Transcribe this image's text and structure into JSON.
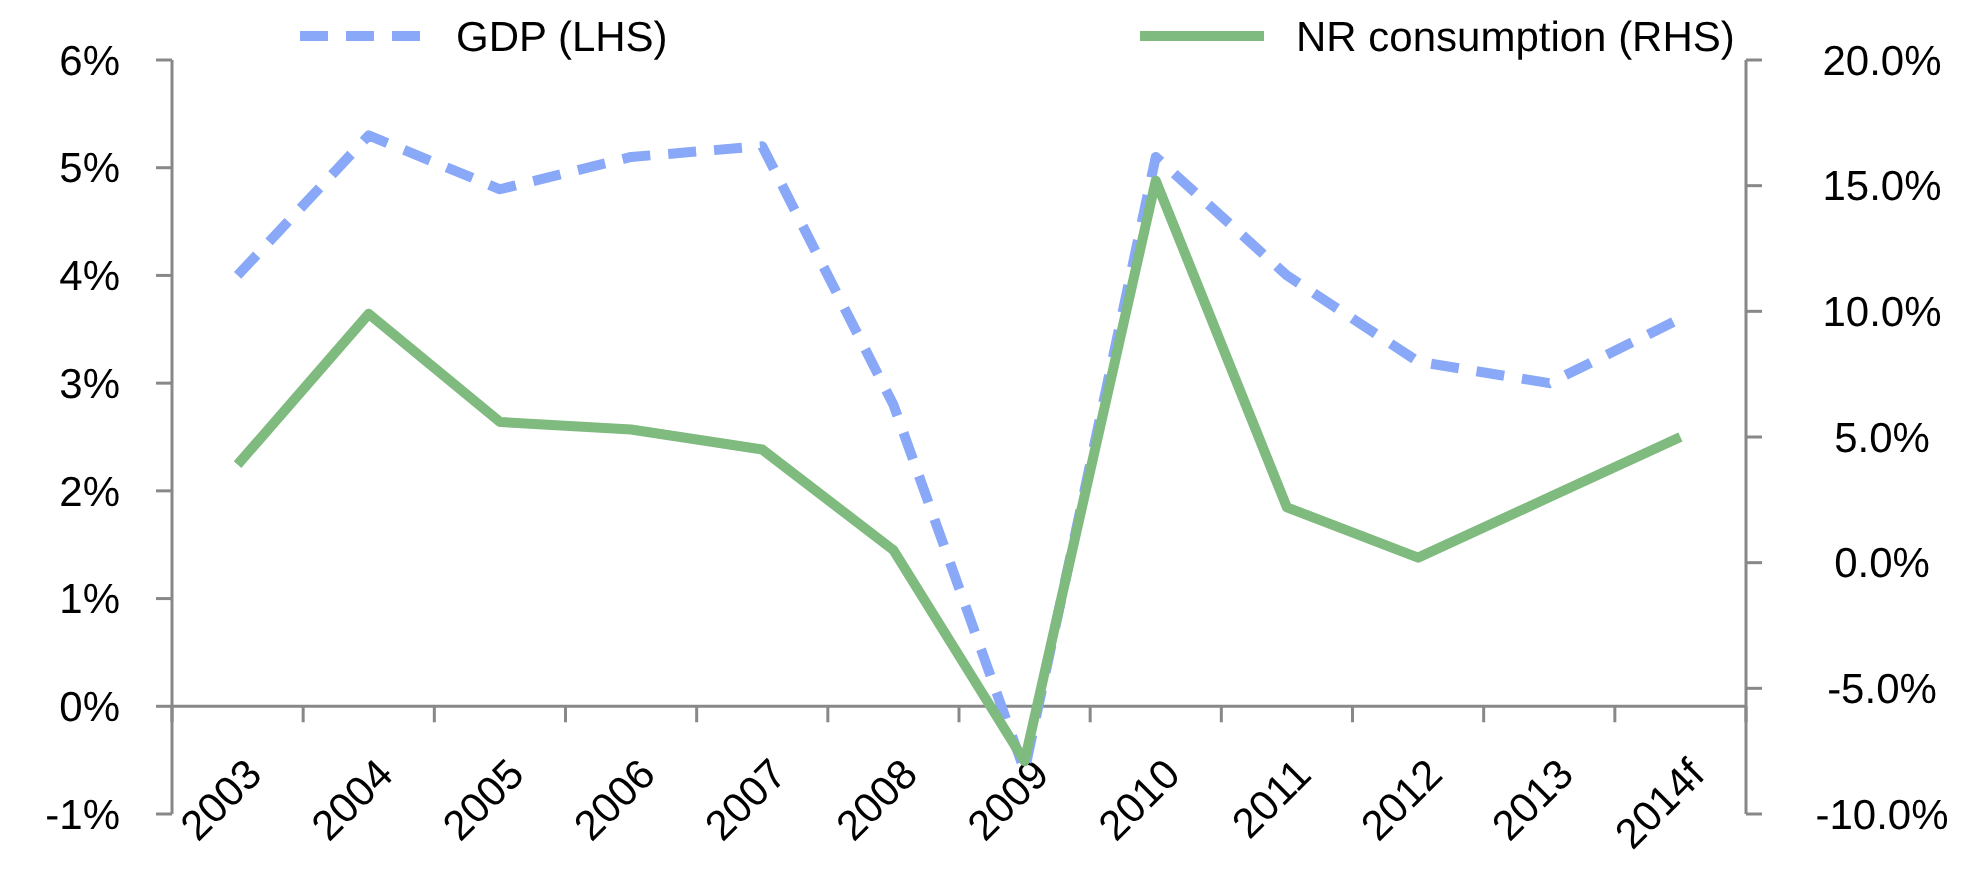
{
  "chart_data": {
    "type": "line",
    "categories": [
      "2003",
      "2004",
      "2005",
      "2006",
      "2007",
      "2008",
      "2009",
      "2010",
      "2011",
      "2012",
      "2013",
      "2014f"
    ],
    "series": [
      {
        "name": "GDP (LHS)",
        "color": "#8aa8f8",
        "line_style": "dashed",
        "values": [
          4.0,
          5.3,
          4.8,
          5.1,
          5.2,
          2.8,
          -0.6,
          5.1,
          4.0,
          3.2,
          3.0,
          3.6
        ]
      },
      {
        "name": "NR consumption (RHS)",
        "color": "#7fba7f",
        "line_style": "solid",
        "axis": "y2",
        "values": [
          3.9,
          9.9,
          5.6,
          5.3,
          4.5,
          0.5,
          -7.9,
          15.2,
          2.2,
          0.2,
          2.6,
          5.0
        ]
      }
    ],
    "ylim": [
      -1,
      6
    ],
    "yticks": [
      {
        "value": -1,
        "label": "-1%"
      },
      {
        "value": 0,
        "label": "0%"
      },
      {
        "value": 1,
        "label": "1%"
      },
      {
        "value": 2,
        "label": "2%"
      },
      {
        "value": 3,
        "label": "3%"
      },
      {
        "value": 4,
        "label": "4%"
      },
      {
        "value": 5,
        "label": "5%"
      },
      {
        "value": 6,
        "label": "6%"
      }
    ],
    "y2lim": [
      -10,
      20
    ],
    "y2ticks": [
      {
        "value": -10,
        "label": "-10.0%"
      },
      {
        "value": -5,
        "label": "-5.0%"
      },
      {
        "value": 0,
        "label": "0.0%"
      },
      {
        "value": 5,
        "label": "5.0%"
      },
      {
        "value": 10,
        "label": "10.0%"
      },
      {
        "value": 15,
        "label": "15.0%"
      },
      {
        "value": 20,
        "label": "20.0%"
      }
    ],
    "legend": "top",
    "grid": false,
    "marker": "none"
  }
}
